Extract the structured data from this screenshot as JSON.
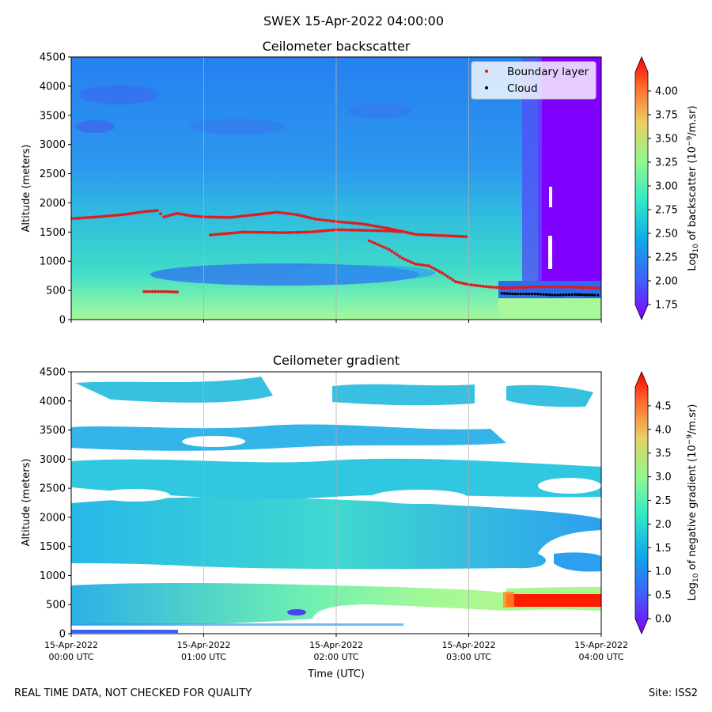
{
  "suptitle": "SWEX 15-Apr-2022 04:00:00",
  "footer_left": "REAL TIME DATA, NOT CHECKED FOR QUALITY",
  "footer_right": "Site: ISS2",
  "colors": {
    "boundary": "#e31a1c",
    "cloud": "#000000",
    "grid": "#b0b0b0"
  },
  "chart_data": [
    {
      "type": "heatmap",
      "title": "Ceilometer backscatter",
      "ylabel": "Altitude (meters)",
      "xlabel": "",
      "ylim": [
        0,
        4500
      ],
      "y_ticks": [
        "0",
        "500",
        "1000",
        "1500",
        "2000",
        "2500",
        "3000",
        "3500",
        "4000",
        "4500"
      ],
      "x_ticks": [
        {
          "line1": "15-Apr-2022",
          "line2": "00:00 UTC"
        },
        {
          "line1": "15-Apr-2022",
          "line2": "01:00 UTC"
        },
        {
          "line1": "15-Apr-2022",
          "line2": "02:00 UTC"
        },
        {
          "line1": "15-Apr-2022",
          "line2": "03:00 UTC"
        },
        {
          "line1": "15-Apr-2022",
          "line2": "04:00 UTC"
        }
      ],
      "xlim_hours": [
        0,
        4
      ],
      "colorbar_label": "Log10 of backscatter (10^-9/m.sr)",
      "colorbar_range": [
        1.75,
        4.2
      ],
      "colorbar_ticks": [
        "1.75",
        "2.00",
        "2.25",
        "2.50",
        "2.75",
        "3.00",
        "3.25",
        "3.50",
        "3.75",
        "4.00"
      ],
      "legend": [
        "Boundary layer",
        "Cloud"
      ],
      "legend_position": "top-right",
      "series": [
        {
          "name": "Boundary layer",
          "segment": "main",
          "points": [
            [
              0.0,
              1730
            ],
            [
              0.2,
              1760
            ],
            [
              0.4,
              1800
            ],
            [
              0.55,
              1850
            ],
            [
              0.65,
              1870
            ],
            [
              0.7,
              1760
            ],
            [
              0.8,
              1820
            ],
            [
              0.9,
              1780
            ],
            [
              1.0,
              1760
            ],
            [
              1.2,
              1750
            ],
            [
              1.4,
              1800
            ],
            [
              1.55,
              1840
            ],
            [
              1.7,
              1800
            ],
            [
              1.85,
              1720
            ],
            [
              2.0,
              1680
            ],
            [
              2.2,
              1640
            ],
            [
              2.4,
              1560
            ],
            [
              2.6,
              1460
            ],
            [
              2.8,
              1440
            ],
            [
              3.0,
              1420
            ]
          ]
        },
        {
          "name": "Boundary layer",
          "segment": "lower",
          "points": [
            [
              1.05,
              1450
            ],
            [
              1.3,
              1500
            ],
            [
              1.6,
              1490
            ],
            [
              1.8,
              1500
            ],
            [
              2.0,
              1540
            ],
            [
              2.2,
              1530
            ],
            [
              2.4,
              1520
            ],
            [
              2.5,
              1500
            ]
          ]
        },
        {
          "name": "Boundary layer",
          "segment": "descending",
          "points": [
            [
              2.25,
              1350
            ],
            [
              2.4,
              1200
            ],
            [
              2.5,
              1050
            ],
            [
              2.6,
              950
            ],
            [
              2.7,
              920
            ],
            [
              2.8,
              800
            ],
            [
              2.9,
              650
            ],
            [
              3.0,
              600
            ],
            [
              3.15,
              560
            ],
            [
              3.3,
              540
            ]
          ]
        },
        {
          "name": "Boundary layer",
          "segment": "near-surface",
          "points": [
            [
              0.55,
              480
            ],
            [
              0.7,
              480
            ],
            [
              0.82,
              470
            ]
          ]
        },
        {
          "name": "Boundary layer",
          "segment": "late",
          "points": [
            [
              3.25,
              540
            ],
            [
              3.5,
              560
            ],
            [
              3.75,
              560
            ],
            [
              4.0,
              540
            ]
          ]
        },
        {
          "name": "Cloud",
          "points": [
            [
              3.25,
              450
            ],
            [
              3.35,
              440
            ],
            [
              3.5,
              440
            ],
            [
              3.65,
              420
            ],
            [
              3.8,
              430
            ],
            [
              3.95,
              420
            ],
            [
              4.0,
              420
            ]
          ]
        }
      ]
    },
    {
      "type": "heatmap",
      "title": "Ceilometer gradient",
      "ylabel": "Altitude (meters)",
      "xlabel": "Time (UTC)",
      "ylim": [
        0,
        4500
      ],
      "y_ticks": [
        "0",
        "500",
        "1000",
        "1500",
        "2000",
        "2500",
        "3000",
        "3500",
        "4000",
        "4500"
      ],
      "x_ticks": [
        {
          "line1": "15-Apr-2022",
          "line2": "00:00 UTC"
        },
        {
          "line1": "15-Apr-2022",
          "line2": "01:00 UTC"
        },
        {
          "line1": "15-Apr-2022",
          "line2": "02:00 UTC"
        },
        {
          "line1": "15-Apr-2022",
          "line2": "03:00 UTC"
        },
        {
          "line1": "15-Apr-2022",
          "line2": "04:00 UTC"
        }
      ],
      "xlim_hours": [
        0,
        4
      ],
      "colorbar_label": "Log10 of negative gradient (10^-9/m.sr)",
      "colorbar_range": [
        0.0,
        4.9
      ],
      "colorbar_ticks": [
        "0.0",
        "0.5",
        "1.0",
        "1.5",
        "2.0",
        "2.5",
        "3.0",
        "3.5",
        "4.0",
        "4.5"
      ],
      "bands": [
        {
          "from": 1250,
          "to": 2200,
          "level": 1.8
        },
        {
          "from": 400,
          "to": 850,
          "level": 2.0
        },
        {
          "from": 2400,
          "to": 3000,
          "level": 1.6
        },
        {
          "from": 3200,
          "to": 3500,
          "level": 1.5
        },
        {
          "from": 3900,
          "to": 4350,
          "level": 1.5
        }
      ]
    }
  ]
}
